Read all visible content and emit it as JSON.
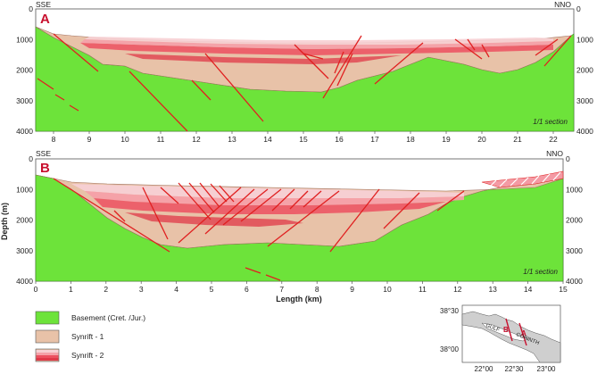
{
  "panel_a": {
    "letter": "A",
    "left_label": "SSE",
    "right_label": "NNO",
    "note": "1/1 section",
    "x_ticks": [
      "8",
      "9",
      "10",
      "11",
      "12",
      "13",
      "14",
      "15",
      "16",
      "17",
      "18",
      "19",
      "20",
      "21",
      "22"
    ],
    "y_ticks": [
      "0",
      "1000",
      "2000",
      "3000",
      "4000"
    ]
  },
  "panel_b": {
    "letter": "B",
    "left_label": "SSE",
    "right_label": "NNO",
    "note": "1/1 section",
    "x_ticks": [
      "0",
      "1",
      "2",
      "3",
      "4",
      "5",
      "6",
      "7",
      "8",
      "9",
      "10",
      "11",
      "12",
      "13",
      "14",
      "15"
    ],
    "y_ticks": [
      "0",
      "1000",
      "2000",
      "3000",
      "4000"
    ],
    "xlabel": "Length (km)",
    "ylabel": "Depth (m)"
  },
  "legend": {
    "items": [
      {
        "label": "Basement (Cret. /Jur.)",
        "color": "#6de33a"
      },
      {
        "label": "Synrift - 1",
        "color": "#e8c2a8"
      },
      {
        "label": "Synrift - 2",
        "color": "#ec5060"
      }
    ]
  },
  "inset_map": {
    "lat_labels": [
      "38°30",
      "38°00"
    ],
    "lon_labels": [
      "22°00",
      "22°30",
      "23°00"
    ],
    "gulf_label": "GULF",
    "corinth_label": "CORINTH",
    "marker_a": "A",
    "marker_b": "B"
  },
  "colors": {
    "basement": "#6de33a",
    "synrift1": "#e8c2a8",
    "synrift2": "#ec5060",
    "fault": "#e02020"
  }
}
